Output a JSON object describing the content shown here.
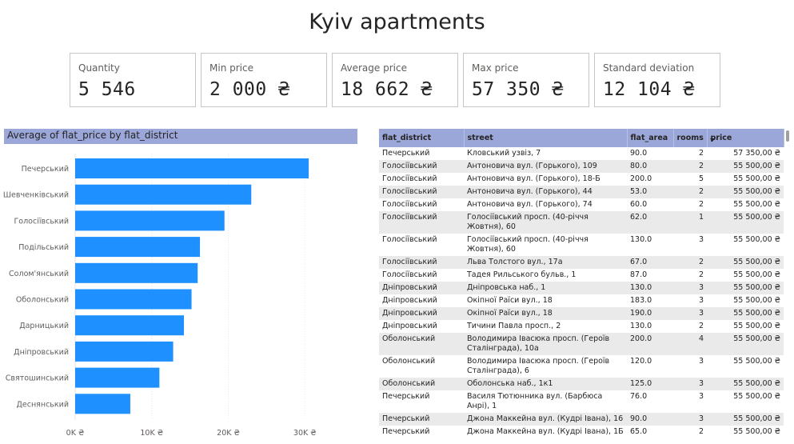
{
  "page_title": "Kyiv apartments",
  "cards": [
    {
      "label": "Quantity",
      "value": "5 546"
    },
    {
      "label": "Min price",
      "value": "2 000 ₴"
    },
    {
      "label": "Average price",
      "value": "18 662 ₴"
    },
    {
      "label": "Max price",
      "value": "57 350 ₴"
    },
    {
      "label": "Standard deviation",
      "value": "12 104 ₴"
    }
  ],
  "colors": {
    "bar": "#1e90ff",
    "header": "#9ba6d9",
    "row_alt": "#eaeaea"
  },
  "chart_data": {
    "type": "bar",
    "orientation": "horizontal",
    "title": "Average of flat_price by flat_district",
    "categories": [
      "Печерський",
      "Шевченківський",
      "Голосіївський",
      "Подільський",
      "Солом'янський",
      "Оболонський",
      "Дарницький",
      "Дніпровський",
      "Святошинський",
      "Деснянський"
    ],
    "values": [
      30500,
      23000,
      19500,
      16300,
      16000,
      15200,
      14200,
      12800,
      11000,
      7200
    ],
    "xlim": [
      0,
      33000
    ],
    "xticks": [
      0,
      10000,
      20000,
      30000
    ],
    "xtick_labels": [
      "0K ₴",
      "10K ₴",
      "20K ₴",
      "30K ₴"
    ],
    "grid": true
  },
  "table": {
    "columns": [
      "flat_district",
      "street",
      "flat_area",
      "rooms",
      "price"
    ],
    "rows": [
      [
        "Печерський",
        "Кловський узвіз, 7",
        "90.0",
        "2",
        "57 350,00 ₴"
      ],
      [
        "Голосіївський",
        "Антоновича вул. (Горького), 109",
        "80.0",
        "2",
        "55 500,00 ₴"
      ],
      [
        "Голосіївський",
        "Антоновича вул. (Горького), 18-Б",
        "200.0",
        "5",
        "55 500,00 ₴"
      ],
      [
        "Голосіївський",
        "Антоновича вул. (Горького), 44",
        "53.0",
        "2",
        "55 500,00 ₴"
      ],
      [
        "Голосіївський",
        "Антоновича вул. (Горького), 74",
        "60.0",
        "2",
        "55 500,00 ₴"
      ],
      [
        "Голосіївський",
        "Голосіївський просп. (40-річчя Жовтня), 60",
        "62.0",
        "1",
        "55 500,00 ₴"
      ],
      [
        "Голосіївський",
        "Голосіївський просп. (40-річчя Жовтня), 60",
        "130.0",
        "3",
        "55 500,00 ₴"
      ],
      [
        "Голосіївський",
        "Льва Толстого вул., 17а",
        "67.0",
        "2",
        "55 500,00 ₴"
      ],
      [
        "Голосіївський",
        "Тадея Рильського бульв., 1",
        "87.0",
        "2",
        "55 500,00 ₴"
      ],
      [
        "Дніпровський",
        "Дніпровська наб., 1",
        "130.0",
        "3",
        "55 500,00 ₴"
      ],
      [
        "Дніпровський",
        "Окіпної Раїси вул., 18",
        "183.0",
        "3",
        "55 500,00 ₴"
      ],
      [
        "Дніпровський",
        "Окіпної Раїси вул., 18",
        "190.0",
        "3",
        "55 500,00 ₴"
      ],
      [
        "Дніпровський",
        "Тичини Павла просп., 2",
        "130.0",
        "2",
        "55 500,00 ₴"
      ],
      [
        "Оболонський",
        "Володимира Івасюка просп. (Героїв Сталінграда), 10а",
        "200.0",
        "4",
        "55 500,00 ₴"
      ],
      [
        "Оболонський",
        "Володимира Івасюка просп. (Героїв Сталінграда), 6",
        "120.0",
        "3",
        "55 500,00 ₴"
      ],
      [
        "Оболонський",
        "Оболонська наб., 1к1",
        "125.0",
        "3",
        "55 500,00 ₴"
      ],
      [
        "Печерський",
        "Василя Тютюнника вул. (Барбюса Анрі), 1",
        "76.0",
        "3",
        "55 500,00 ₴"
      ],
      [
        "Печерський",
        "Джона Маккейна вул. (Кудрі Івана), 16",
        "90.0",
        "3",
        "55 500,00 ₴"
      ],
      [
        "Печерський",
        "Джона Маккейна вул. (Кудрі Івана), 1Б",
        "65.0",
        "2",
        "55 500,00 ₴"
      ]
    ]
  }
}
